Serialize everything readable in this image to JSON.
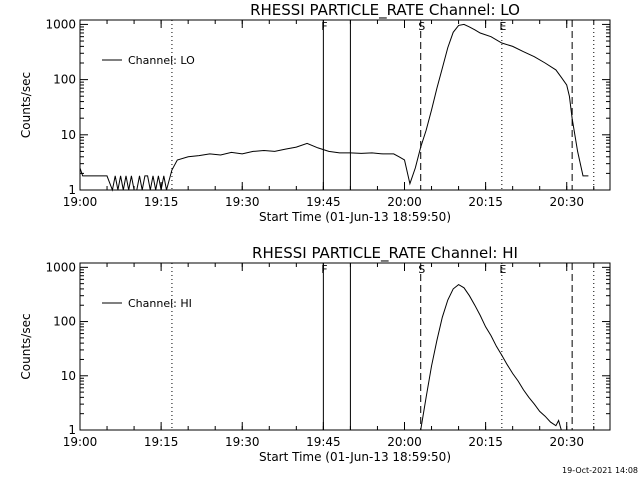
{
  "footer": {
    "timestamp": "19-Oct-2021 14:08"
  },
  "chart_data": [
    {
      "type": "line",
      "title": "RHESSI PARTICLE_RATE Channel: LO",
      "xlabel": "Start Time (01-Jun-13 18:59:50)",
      "ylabel": "Counts/sec",
      "yscale": "log",
      "xlim": [
        "19:00",
        "20:38"
      ],
      "ylim": [
        1,
        1000
      ],
      "xtick_labels": [
        "19:00",
        "19:15",
        "19:30",
        "19:45",
        "20:00",
        "20:15",
        "20:30"
      ],
      "ytick_labels": [
        "1",
        "10",
        "100",
        "1000"
      ],
      "legend": {
        "position": "top-left",
        "entries": [
          "Channel: LO"
        ]
      },
      "grid": false,
      "markers": [
        {
          "label": "F",
          "time": "19:45",
          "style": "solid"
        },
        {
          "label": "",
          "time": "19:50",
          "style": "solid"
        },
        {
          "label": "S",
          "time": "20:03",
          "style": "dashed"
        },
        {
          "label": "E",
          "time": "20:18",
          "style": "dotted"
        },
        {
          "label": "",
          "time": "19:17",
          "style": "dotted"
        },
        {
          "label": "",
          "time": "20:31",
          "style": "dashed"
        },
        {
          "label": "",
          "time": "20:35",
          "style": "dotted"
        }
      ],
      "series": [
        {
          "x": [
            "19:00",
            "19:00.5",
            "19:01",
            "19:05",
            "19:06",
            "19:06.5",
            "19:07",
            "19:07.5",
            "19:08",
            "19:08.5",
            "19:09",
            "19:09.5",
            "19:10",
            "19:10.5",
            "19:11",
            "19:11.5",
            "19:12",
            "19:12.5",
            "19:13",
            "19:13.5",
            "19:14",
            "19:14.5",
            "19:15",
            "19:15.5",
            "19:16",
            "19:17",
            "19:18",
            "19:20",
            "19:22",
            "19:24",
            "19:26",
            "19:28",
            "19:30",
            "19:32",
            "19:34",
            "19:36",
            "19:38",
            "19:40",
            "19:42",
            "19:44",
            "19:46",
            "19:48",
            "19:50",
            "19:52",
            "19:54",
            "19:56",
            "19:58",
            "19:59",
            "20:00",
            "20:01",
            "20:02",
            "20:03",
            "20:04",
            "20:05",
            "20:06",
            "20:07",
            "20:08",
            "20:09",
            "20:10",
            "20:11",
            "20:12",
            "20:13",
            "20:14",
            "20:16",
            "20:18",
            "20:20",
            "20:22",
            "20:24",
            "20:26",
            "20:28",
            "20:29",
            "20:30",
            "20:30.5",
            "20:31",
            "20:32",
            "20:33",
            "20:34"
          ],
          "y": [
            2.5,
            1.8,
            1.8,
            1.8,
            1,
            1.8,
            1,
            1.8,
            1,
            1.8,
            1,
            1.8,
            1,
            1,
            1.8,
            1,
            1.8,
            1.8,
            1,
            1.8,
            1,
            1.8,
            1,
            1.8,
            1,
            2.3,
            3.5,
            4,
            4.2,
            4.5,
            4.3,
            4.8,
            4.5,
            5,
            5.2,
            5,
            5.5,
            6,
            7,
            5.8,
            5,
            4.7,
            4.7,
            4.6,
            4.7,
            4.5,
            4.5,
            4,
            3.5,
            1.3,
            2.5,
            6,
            12,
            28,
            70,
            160,
            380,
            720,
            960,
            1000,
            900,
            800,
            700,
            600,
            460,
            400,
            320,
            260,
            200,
            150,
            110,
            80,
            50,
            20,
            5,
            1.8,
            1.8
          ]
        }
      ]
    },
    {
      "type": "line",
      "title": "RHESSI PARTICLE_RATE Channel: HI",
      "xlabel": "Start Time (01-Jun-13 18:59:50)",
      "ylabel": "Counts/sec",
      "yscale": "log",
      "xlim": [
        "19:00",
        "20:38"
      ],
      "ylim": [
        1,
        1000
      ],
      "xtick_labels": [
        "19:00",
        "19:15",
        "19:30",
        "19:45",
        "20:00",
        "20:15",
        "20:30"
      ],
      "ytick_labels": [
        "1",
        "10",
        "100",
        "1000"
      ],
      "legend": {
        "position": "top-left",
        "entries": [
          "Channel: HI"
        ]
      },
      "grid": false,
      "markers": [
        {
          "label": "F",
          "time": "19:45",
          "style": "solid"
        },
        {
          "label": "",
          "time": "19:50",
          "style": "solid"
        },
        {
          "label": "S",
          "time": "20:03",
          "style": "dashed"
        },
        {
          "label": "E",
          "time": "20:18",
          "style": "dotted"
        },
        {
          "label": "",
          "time": "19:17",
          "style": "dotted"
        },
        {
          "label": "",
          "time": "20:31",
          "style": "dashed"
        },
        {
          "label": "",
          "time": "20:35",
          "style": "dotted"
        }
      ],
      "series": [
        {
          "x": [
            "20:03",
            "20:04",
            "20:05",
            "20:06",
            "20:07",
            "20:08",
            "20:09",
            "20:10",
            "20:11",
            "20:12",
            "20:13",
            "20:14",
            "20:15",
            "20:16",
            "20:17",
            "20:18",
            "20:19",
            "20:20",
            "20:21",
            "20:22",
            "20:23",
            "20:24",
            "20:25",
            "20:26",
            "20:27",
            "20:28",
            "20:28.5",
            "20:29"
          ],
          "y": [
            1,
            4,
            15,
            45,
            120,
            250,
            400,
            480,
            420,
            300,
            200,
            130,
            80,
            55,
            35,
            24,
            16,
            11,
            8,
            5.5,
            4,
            3,
            2.2,
            1.8,
            1.4,
            1.2,
            1.5,
            1
          ]
        }
      ]
    }
  ]
}
